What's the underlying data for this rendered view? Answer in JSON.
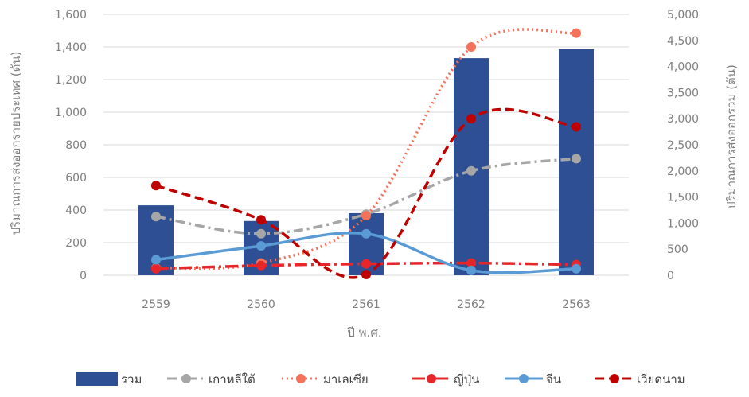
{
  "chart_data": {
    "type": "bar",
    "categories": [
      "2559",
      "2560",
      "2561",
      "2562",
      "2563"
    ],
    "xlabel": "ปี พ.ศ.",
    "ylabel_left": "ปริมาณการส่งออกรายประเทศ (ตัน)",
    "ylabel_right": "ปริมาณการส่งออกรวม (ตัน)",
    "ylim_left": [
      0,
      1600
    ],
    "ylim_right": [
      0,
      5000
    ],
    "yticks_left": [
      0,
      200,
      400,
      600,
      800,
      1000,
      1200,
      1400,
      1600
    ],
    "yticks_right": [
      0,
      500,
      1000,
      1500,
      2000,
      2500,
      3000,
      3500,
      4000,
      4500,
      5000
    ],
    "ytick_labels_left": [
      "0",
      "200",
      "400",
      "600",
      "800",
      "1,000",
      "1,200",
      "1,400",
      "1,600"
    ],
    "ytick_labels_right": [
      "0",
      "500",
      "1,000",
      "1,500",
      "2,000",
      "2,500",
      "3,000",
      "3,500",
      "4,000",
      "4,500",
      "5,000"
    ],
    "grid": true,
    "legend_position": "bottom",
    "series": [
      {
        "name": "รวม",
        "kind": "bar",
        "axis": "right",
        "color": "#2e4f93",
        "values": [
          1340,
          1040,
          1190,
          4160,
          4330
        ]
      },
      {
        "name": "เกาหลีใต้",
        "kind": "line",
        "style": "dashdot",
        "axis": "left",
        "color": "#a6a6a6",
        "values": [
          360,
          255,
          375,
          640,
          715
        ]
      },
      {
        "name": "มาเลเซีย",
        "kind": "line",
        "style": "dotted",
        "axis": "left",
        "color": "#f4715a",
        "values": [
          45,
          75,
          365,
          1400,
          1485
        ]
      },
      {
        "name": "ญี่ปุ่น",
        "kind": "line",
        "style": "longdashdot",
        "axis": "left",
        "color": "#e8262a",
        "values": [
          40,
          60,
          70,
          75,
          65
        ]
      },
      {
        "name": "จีน",
        "kind": "line",
        "style": "solid",
        "axis": "left",
        "color": "#5b9bd5",
        "values": [
          95,
          180,
          255,
          30,
          40
        ]
      },
      {
        "name": "เวียดนาม",
        "kind": "line",
        "style": "dashed",
        "axis": "left",
        "color": "#c00000",
        "values": [
          550,
          340,
          5,
          960,
          910
        ]
      }
    ]
  }
}
